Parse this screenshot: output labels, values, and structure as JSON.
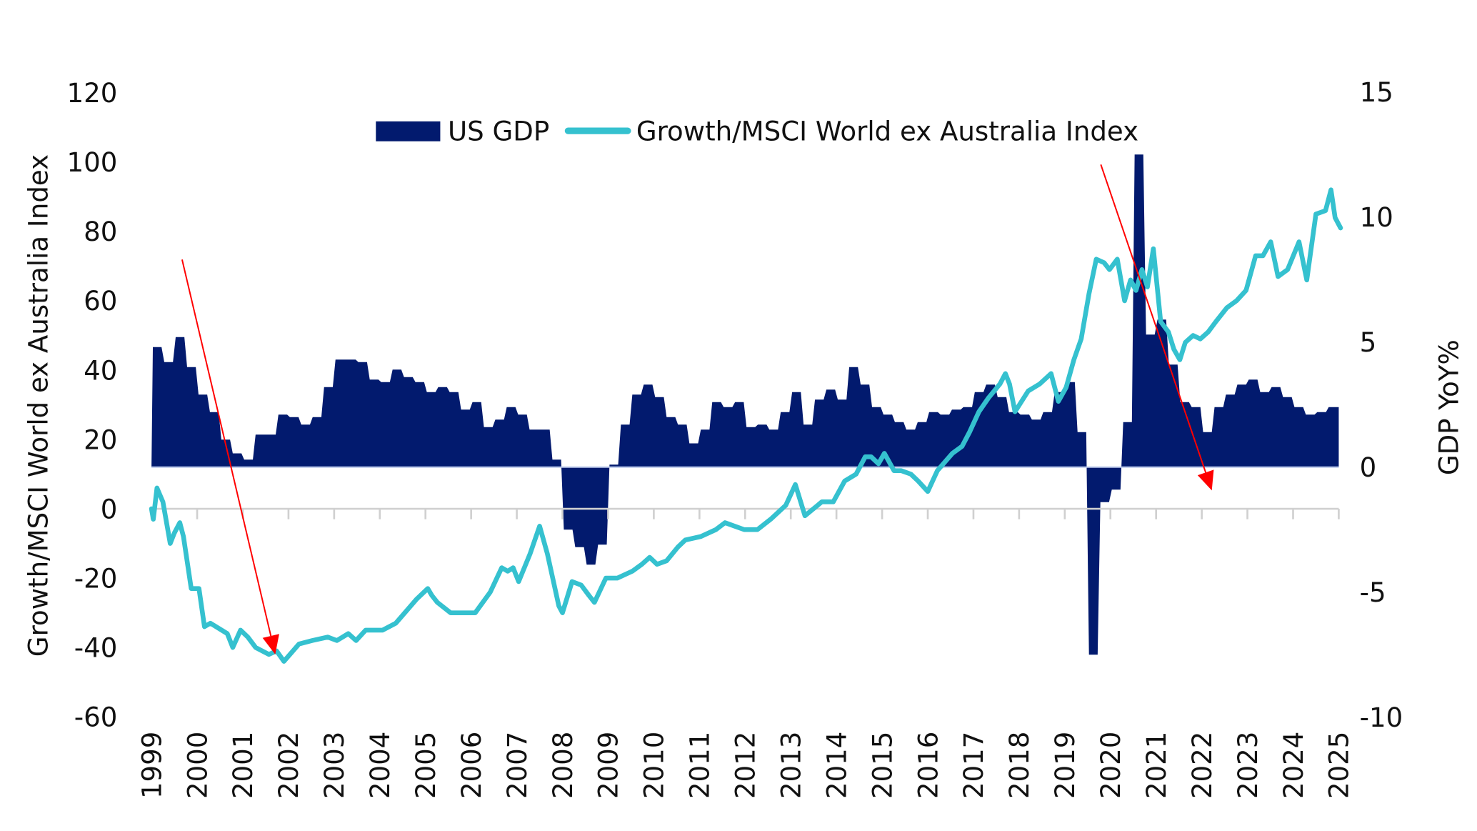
{
  "chart_data": {
    "type": "area+line",
    "title": "",
    "legend": {
      "placement": "top",
      "entries": [
        "US GDP",
        "Growth/MSCI World ex Australia Index"
      ]
    },
    "left_axis": {
      "label": "Growth/MSCI World ex Australia Index",
      "ylim": [
        -60,
        120
      ],
      "ticks": [
        "120",
        "100",
        "80",
        "60",
        "40",
        "20",
        "0",
        "-20",
        "-40",
        "-60"
      ]
    },
    "right_axis": {
      "label": "GDP YoY%",
      "ylim": [
        -10,
        15
      ],
      "ticks": [
        "15",
        "10",
        "5",
        "0",
        "-5",
        "-10"
      ]
    },
    "x_axis": {
      "xlim": [
        1999,
        2025
      ],
      "ticks": [
        "1999",
        "2000",
        "2001",
        "2002",
        "2003",
        "2004",
        "2005",
        "2006",
        "2007",
        "2008",
        "2009",
        "2010",
        "2011",
        "2012",
        "2013",
        "2014",
        "2015",
        "2016",
        "2017",
        "2018",
        "2019",
        "2020",
        "2021",
        "2022",
        "2023",
        "2024",
        "2025"
      ]
    },
    "grid": false,
    "series": [
      {
        "name": "US GDP",
        "type": "area",
        "axis": "right",
        "color": "#021a6e",
        "x_start": "1999Q1",
        "frequency": "quarterly",
        "values": [
          4.8,
          4.2,
          5.2,
          4.0,
          2.9,
          2.2,
          1.1,
          0.55,
          0.3,
          1.3,
          1.3,
          2.1,
          2.0,
          1.7,
          2.0,
          3.2,
          4.3,
          4.3,
          4.2,
          3.5,
          3.4,
          3.9,
          3.6,
          3.4,
          3.0,
          3.2,
          3.0,
          2.3,
          2.6,
          1.6,
          1.9,
          2.4,
          2.1,
          1.5,
          1.5,
          0.3,
          -2.5,
          -3.2,
          -3.9,
          -3.1,
          0.1,
          1.7,
          2.9,
          3.3,
          2.8,
          2.0,
          1.7,
          0.95,
          1.5,
          2.6,
          2.4,
          2.6,
          1.6,
          1.7,
          1.5,
          2.2,
          3.0,
          1.7,
          2.7,
          3.1,
          2.7,
          4.0,
          3.3,
          2.4,
          2.1,
          1.8,
          1.5,
          1.8,
          2.2,
          2.1,
          2.3,
          2.4,
          3.0,
          3.3,
          2.8,
          2.2,
          2.1,
          1.9,
          2.2,
          3.0,
          3.4,
          1.4,
          -7.5,
          -1.4,
          -0.9,
          1.8,
          12.5,
          5.3,
          5.9,
          4.1,
          2.6,
          2.4,
          1.4,
          2.4,
          2.9,
          3.3,
          3.5,
          3.0,
          3.2,
          2.8,
          2.4,
          2.1,
          2.2,
          2.4
        ]
      },
      {
        "name": "Growth/MSCI World ex Australia Index",
        "type": "line",
        "axis": "left",
        "color": "#35c1cf",
        "points": [
          [
            1999.0,
            0
          ],
          [
            1999.04,
            -3
          ],
          [
            1999.12,
            6
          ],
          [
            1999.25,
            2
          ],
          [
            1999.41,
            -10
          ],
          [
            1999.5,
            -7
          ],
          [
            1999.62,
            -4
          ],
          [
            1999.7,
            -8
          ],
          [
            1999.87,
            -23
          ],
          [
            2000.04,
            -23
          ],
          [
            2000.16,
            -34
          ],
          [
            2000.29,
            -33
          ],
          [
            2000.66,
            -36
          ],
          [
            2000.78,
            -40
          ],
          [
            2000.95,
            -35
          ],
          [
            2001.11,
            -37
          ],
          [
            2001.28,
            -40
          ],
          [
            2001.57,
            -42
          ],
          [
            2001.74,
            -41
          ],
          [
            2001.9,
            -44
          ],
          [
            2002.23,
            -39
          ],
          [
            2002.52,
            -38
          ],
          [
            2002.86,
            -37
          ],
          [
            2003.06,
            -38
          ],
          [
            2003.31,
            -36
          ],
          [
            2003.48,
            -38
          ],
          [
            2003.69,
            -35
          ],
          [
            2004.06,
            -35
          ],
          [
            2004.35,
            -33
          ],
          [
            2004.81,
            -26
          ],
          [
            2005.05,
            -23
          ],
          [
            2005.14,
            -25
          ],
          [
            2005.26,
            -27
          ],
          [
            2005.55,
            -30
          ],
          [
            2005.84,
            -30
          ],
          [
            2006.09,
            -30
          ],
          [
            2006.42,
            -24
          ],
          [
            2006.67,
            -17
          ],
          [
            2006.8,
            -18
          ],
          [
            2006.92,
            -17
          ],
          [
            2007.04,
            -21
          ],
          [
            2007.29,
            -13
          ],
          [
            2007.5,
            -5
          ],
          [
            2007.67,
            -13
          ],
          [
            2007.92,
            -28
          ],
          [
            2008.0,
            -30
          ],
          [
            2008.21,
            -21
          ],
          [
            2008.41,
            -22
          ],
          [
            2008.58,
            -25
          ],
          [
            2008.7,
            -27
          ],
          [
            2008.95,
            -20
          ],
          [
            2009.2,
            -20
          ],
          [
            2009.53,
            -18
          ],
          [
            2009.74,
            -16
          ],
          [
            2009.91,
            -14
          ],
          [
            2010.07,
            -16
          ],
          [
            2010.28,
            -15
          ],
          [
            2010.53,
            -11
          ],
          [
            2010.69,
            -9
          ],
          [
            2011.03,
            -8
          ],
          [
            2011.36,
            -6
          ],
          [
            2011.56,
            -4
          ],
          [
            2011.77,
            -5
          ],
          [
            2011.98,
            -6
          ],
          [
            2012.27,
            -6
          ],
          [
            2012.56,
            -3
          ],
          [
            2012.89,
            1
          ],
          [
            2013.1,
            7
          ],
          [
            2013.31,
            -2
          ],
          [
            2013.68,
            2
          ],
          [
            2013.93,
            2
          ],
          [
            2014.18,
            8
          ],
          [
            2014.43,
            10
          ],
          [
            2014.63,
            15
          ],
          [
            2014.76,
            15
          ],
          [
            2014.92,
            13
          ],
          [
            2015.05,
            16
          ],
          [
            2015.26,
            11
          ],
          [
            2015.42,
            11
          ],
          [
            2015.63,
            10
          ],
          [
            2015.79,
            8
          ],
          [
            2016.0,
            5
          ],
          [
            2016.21,
            11
          ],
          [
            2016.54,
            16
          ],
          [
            2016.75,
            18
          ],
          [
            2016.91,
            22
          ],
          [
            2017.12,
            28
          ],
          [
            2017.33,
            32
          ],
          [
            2017.58,
            36
          ],
          [
            2017.7,
            39
          ],
          [
            2017.79,
            36
          ],
          [
            2017.91,
            28
          ],
          [
            2018.2,
            34
          ],
          [
            2018.45,
            36
          ],
          [
            2018.7,
            39
          ],
          [
            2018.86,
            31
          ],
          [
            2019.03,
            35
          ],
          [
            2019.2,
            43
          ],
          [
            2019.36,
            49
          ],
          [
            2019.53,
            62
          ],
          [
            2019.69,
            72
          ],
          [
            2019.86,
            71
          ],
          [
            2019.98,
            69
          ],
          [
            2020.15,
            72
          ],
          [
            2020.31,
            60
          ],
          [
            2020.44,
            66
          ],
          [
            2020.56,
            63
          ],
          [
            2020.69,
            69
          ],
          [
            2020.81,
            64
          ],
          [
            2020.94,
            75
          ],
          [
            2021.1,
            54
          ],
          [
            2021.27,
            51
          ],
          [
            2021.39,
            46
          ],
          [
            2021.52,
            43
          ],
          [
            2021.64,
            48
          ],
          [
            2021.81,
            50
          ],
          [
            2021.97,
            49
          ],
          [
            2022.14,
            51
          ],
          [
            2022.31,
            54
          ],
          [
            2022.55,
            58
          ],
          [
            2022.76,
            60
          ],
          [
            2022.97,
            63
          ],
          [
            2023.18,
            73
          ],
          [
            2023.34,
            73
          ],
          [
            2023.51,
            77
          ],
          [
            2023.67,
            67
          ],
          [
            2023.88,
            69
          ],
          [
            2024.13,
            77
          ],
          [
            2024.3,
            66
          ],
          [
            2024.5,
            85
          ],
          [
            2024.71,
            86
          ],
          [
            2024.83,
            92
          ],
          [
            2024.92,
            84
          ],
          [
            2025.04,
            81
          ]
        ]
      }
    ],
    "annotations": {
      "arrow_color": "#ff0000",
      "arrows": [
        {
          "from": [
            1999.67,
            8.3
          ],
          "to": [
            2001.71,
            -42
          ]
        },
        {
          "from": [
            2019.79,
            12.1
          ],
          "to": [
            2022.22,
            5.3
          ]
        }
      ]
    }
  }
}
